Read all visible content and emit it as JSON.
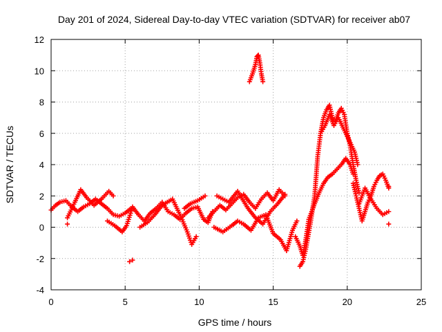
{
  "chart_data": {
    "type": "scatter",
    "title": "Day 201 of 2024, Sidereal Day-to-day VTEC variation (SDTVAR) for receiver ab07",
    "xlabel": "GPS time / hours",
    "ylabel": "SDTVAR / TECUs",
    "xlim": [
      0,
      25
    ],
    "ylim": [
      -4,
      12
    ],
    "xticks": [
      0,
      5,
      10,
      15,
      20,
      25
    ],
    "yticks": [
      -4,
      -2,
      0,
      2,
      4,
      6,
      8,
      10,
      12
    ],
    "grid": true,
    "marker": "+",
    "color": "#ff0000",
    "series": [
      {
        "name": "ab07",
        "x": [
          0.0,
          0.3,
          0.6,
          1.0,
          1.4,
          1.8,
          2.2,
          2.6,
          3.0,
          3.4,
          3.8,
          4.2,
          4.6,
          5.0,
          5.4,
          1.1,
          1.1,
          1.6,
          2.0,
          2.4,
          2.9,
          3.4,
          3.9,
          4.2,
          3.8,
          4.3,
          4.8,
          5.1,
          5.5,
          5.9,
          6.3,
          6.7,
          7.1,
          7.5,
          7.9,
          8.3,
          8.7,
          9.1,
          9.5,
          9.9,
          10.3,
          10.6,
          10.9,
          6.0,
          6.5,
          7.0,
          7.5,
          8.2,
          8.8,
          9.2,
          9.5,
          9.8,
          9.0,
          9.4,
          9.9,
          10.4,
          5.5,
          5.3,
          10.6,
          11.0,
          11.4,
          11.8,
          12.2,
          12.6,
          13.0,
          13.4,
          13.8,
          14.2,
          14.6,
          15.0,
          15.4,
          15.8,
          11.0,
          11.6,
          12.2,
          12.6,
          13.0,
          13.5,
          14.0,
          14.5,
          15.0,
          15.5,
          15.9,
          16.3,
          16.6,
          11.2,
          12.0,
          12.6,
          13.3,
          13.8,
          14.3,
          14.8,
          15.3,
          15.8,
          13.4,
          13.6,
          13.8,
          13.9,
          14.0,
          14.1,
          14.2,
          14.3,
          16.8,
          17.0,
          17.2,
          17.5,
          17.8,
          18.0,
          18.2,
          18.4,
          18.6,
          18.8,
          19.0,
          19.2,
          19.4,
          19.6,
          19.8,
          20.0,
          20.2,
          20.4,
          20.6,
          20.8,
          18.2,
          18.5,
          18.8,
          19.1,
          19.4,
          19.7,
          20.0,
          20.2,
          20.5,
          20.7,
          16.5,
          16.8,
          17.0,
          17.2,
          17.4,
          17.8,
          18.1,
          18.4,
          18.7,
          19.0,
          19.3,
          19.6,
          19.9,
          20.2,
          20.4,
          20.4,
          20.6,
          20.8,
          21.0,
          21.2,
          21.4,
          21.6,
          21.8,
          22.0,
          22.2,
          22.4,
          22.6,
          22.8,
          20.8,
          21.2,
          21.6,
          22.0,
          22.4,
          22.8,
          22.8,
          22.8
        ],
        "y": [
          1.1,
          1.4,
          1.6,
          1.7,
          1.3,
          1.0,
          1.3,
          1.5,
          1.8,
          1.5,
          1.2,
          0.8,
          0.7,
          0.9,
          1.2,
          0.2,
          0.6,
          1.6,
          2.4,
          1.9,
          1.4,
          1.8,
          2.3,
          2.0,
          0.4,
          0.1,
          -0.3,
          0.1,
          1.3,
          0.8,
          0.4,
          0.9,
          1.2,
          1.6,
          1.0,
          0.8,
          0.5,
          0.9,
          1.2,
          1.3,
          0.5,
          0.3,
          1.0,
          0.0,
          0.3,
          0.8,
          1.4,
          1.8,
          0.6,
          -0.3,
          -1.1,
          -0.6,
          1.2,
          1.5,
          1.7,
          2.0,
          -2.1,
          -2.2,
          0.6,
          1.0,
          1.4,
          1.1,
          1.5,
          1.9,
          2.1,
          1.6,
          1.2,
          1.8,
          2.2,
          1.7,
          2.4,
          2.0,
          0.0,
          -0.3,
          0.1,
          0.4,
          0.2,
          -0.2,
          0.6,
          0.8,
          -0.4,
          -0.8,
          -1.5,
          -0.2,
          0.4,
          2.0,
          1.6,
          2.3,
          1.2,
          0.6,
          0.2,
          1.0,
          1.5,
          2.1,
          9.3,
          9.8,
          10.4,
          10.9,
          11.0,
          10.5,
          9.8,
          9.3,
          -2.5,
          -2.2,
          -1.4,
          0.2,
          2.0,
          4.5,
          6.0,
          7.0,
          7.5,
          7.8,
          7.0,
          6.8,
          7.3,
          7.6,
          7.2,
          6.0,
          5.2,
          4.0,
          3.0,
          2.2,
          6.0,
          6.5,
          7.2,
          6.5,
          7.0,
          6.4,
          5.8,
          5.4,
          4.8,
          4.0,
          -0.6,
          -1.2,
          -1.8,
          -0.8,
          0.5,
          1.5,
          2.2,
          2.8,
          3.2,
          3.4,
          3.7,
          4.0,
          4.4,
          4.0,
          3.4,
          2.8,
          2.0,
          1.2,
          0.4,
          1.0,
          1.6,
          2.0,
          2.6,
          3.0,
          3.3,
          3.4,
          3.0,
          2.5,
          1.5,
          2.5,
          1.8,
          1.2,
          0.8,
          1.0,
          2.6,
          0.2
        ]
      }
    ]
  }
}
